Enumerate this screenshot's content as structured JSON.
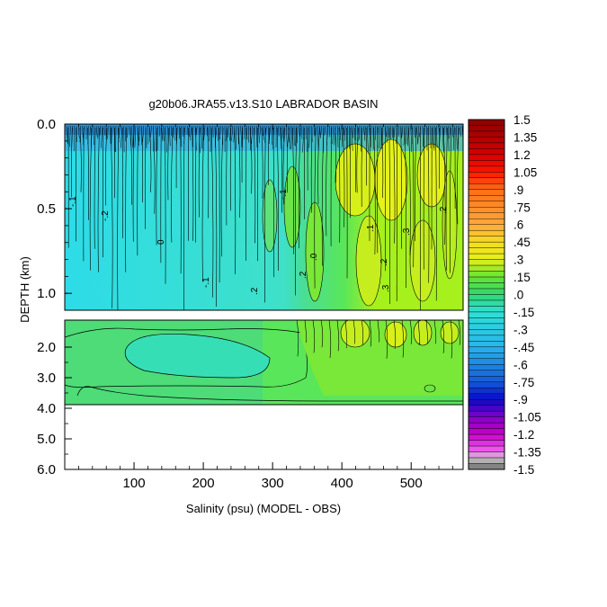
{
  "chart_data": {
    "type": "heatmap",
    "title": "g20b06.JRA55.v13.S10 LABRADOR BASIN",
    "xlabel": "Salinity (psu) (MODEL - OBS)",
    "ylabel": "DEPTH (km)",
    "xlim": [
      0,
      575
    ],
    "x_ticks": [
      "100",
      "200",
      "300",
      "400",
      "500"
    ],
    "x_tick_values": [
      100,
      200,
      300,
      400,
      500
    ],
    "upper_panel": {
      "ylim": [
        0.0,
        1.1
      ],
      "y_ticks": [
        "0.0",
        "0.5",
        "1.0"
      ],
      "y_tick_values": [
        0.0,
        0.5,
        1.0
      ]
    },
    "lower_panel": {
      "ylim": [
        1.1,
        6.0
      ],
      "y_ticks": [
        "2.0",
        "3.0",
        "4.0",
        "5.0",
        "6.0"
      ],
      "y_tick_values": [
        2.0,
        3.0,
        4.0,
        5.0,
        6.0
      ],
      "data_bottom_depth": 3.85
    },
    "contour_labels": [
      "-.1",
      "-.2",
      "0",
      "-.1",
      ".2",
      "-.1",
      ".0",
      ".1",
      ".3",
      ".2",
      ".2",
      ".3",
      ".2"
    ],
    "colorbar": {
      "min": -1.5,
      "max": 1.5,
      "step": 0.05,
      "labels": [
        "1.5",
        "1.35",
        "1.2",
        "1.05",
        ".9",
        ".75",
        ".6",
        ".45",
        ".3",
        ".15",
        ".0",
        "-.15",
        "-.3",
        "-.45",
        "-.6",
        "-.75",
        "-.9",
        "-1.05",
        "-1.2",
        "-1.35",
        "-1.5"
      ],
      "label_values": [
        1.5,
        1.35,
        1.2,
        1.05,
        0.9,
        0.75,
        0.6,
        0.45,
        0.3,
        0.15,
        0.0,
        -0.15,
        -0.3,
        -0.45,
        -0.6,
        -0.75,
        -0.9,
        -1.05,
        -1.2,
        -1.35,
        -1.5
      ]
    }
  }
}
